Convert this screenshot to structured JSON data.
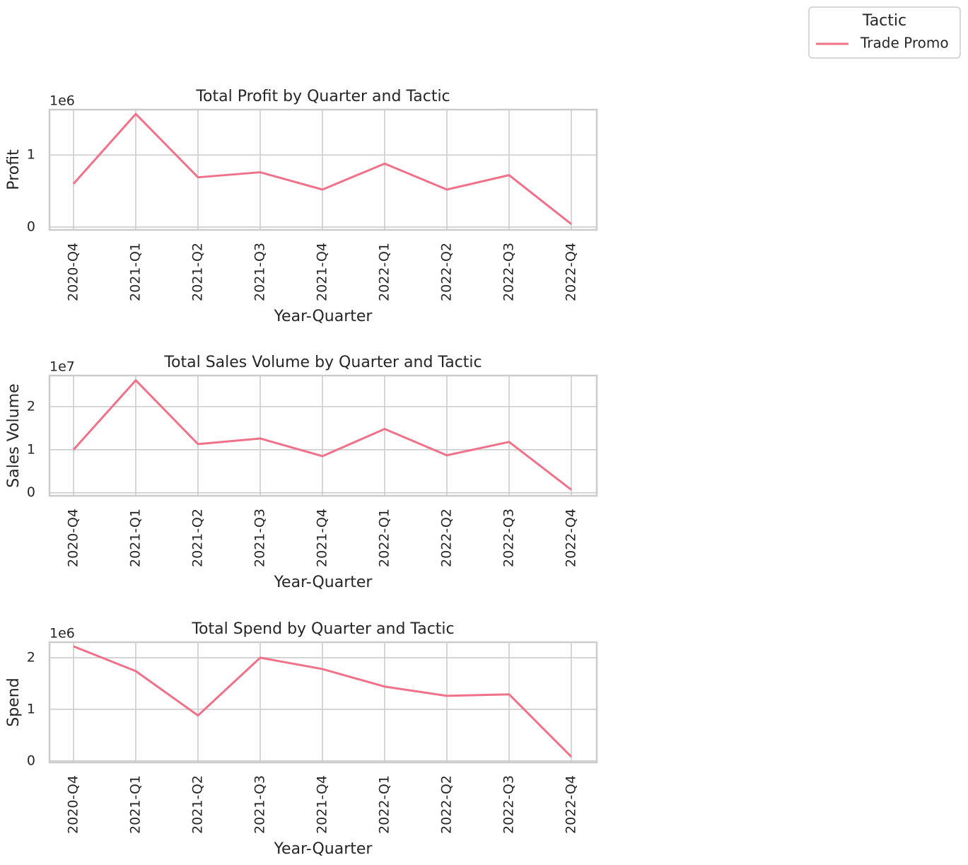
{
  "chart_data": [
    {
      "type": "line",
      "title": "Total Profit by Quarter and Tactic",
      "x_label": "Year-Quarter",
      "y_label": "Profit",
      "offset_text": "1e6",
      "categories": [
        "2020-Q4",
        "2021-Q1",
        "2021-Q2",
        "2021-Q3",
        "2021-Q4",
        "2022-Q1",
        "2022-Q2",
        "2022-Q3",
        "2022-Q4"
      ],
      "series": [
        {
          "name": "Trade Promo",
          "color": "#f0728a",
          "values": [
            0.6,
            1.57,
            0.69,
            0.76,
            0.52,
            0.88,
            0.52,
            0.72,
            0.04
          ]
        }
      ],
      "ylim": [
        -0.04,
        1.63
      ],
      "yticks": [
        0,
        1
      ],
      "grid": true
    },
    {
      "type": "line",
      "title": "Total Sales Volume by Quarter and Tactic",
      "x_label": "Year-Quarter",
      "y_label": "Sales Volume",
      "offset_text": "1e7",
      "categories": [
        "2020-Q4",
        "2021-Q1",
        "2021-Q2",
        "2021-Q3",
        "2021-Q4",
        "2022-Q1",
        "2022-Q2",
        "2022-Q3",
        "2022-Q4"
      ],
      "series": [
        {
          "name": "Trade Promo",
          "color": "#f0728a",
          "values": [
            1.0,
            2.61,
            1.13,
            1.26,
            0.85,
            1.48,
            0.87,
            1.18,
            0.07
          ]
        }
      ],
      "ylim": [
        -0.07,
        2.72
      ],
      "yticks": [
        0,
        1,
        2
      ],
      "grid": true
    },
    {
      "type": "line",
      "title": "Total Spend by Quarter and Tactic",
      "x_label": "Year-Quarter",
      "y_label": "Spend",
      "offset_text": "1e6",
      "categories": [
        "2020-Q4",
        "2021-Q1",
        "2021-Q2",
        "2021-Q3",
        "2021-Q4",
        "2022-Q1",
        "2022-Q2",
        "2022-Q3",
        "2022-Q4"
      ],
      "series": [
        {
          "name": "Trade Promo",
          "color": "#f0728a",
          "values": [
            2.22,
            1.74,
            0.88,
            2.0,
            1.78,
            1.44,
            1.26,
            1.29,
            0.08
          ]
        }
      ],
      "ylim": [
        -0.03,
        2.3
      ],
      "yticks": [
        0,
        1,
        2
      ],
      "grid": true
    }
  ],
  "legend": {
    "title": "Tactic",
    "position": "upper right"
  }
}
